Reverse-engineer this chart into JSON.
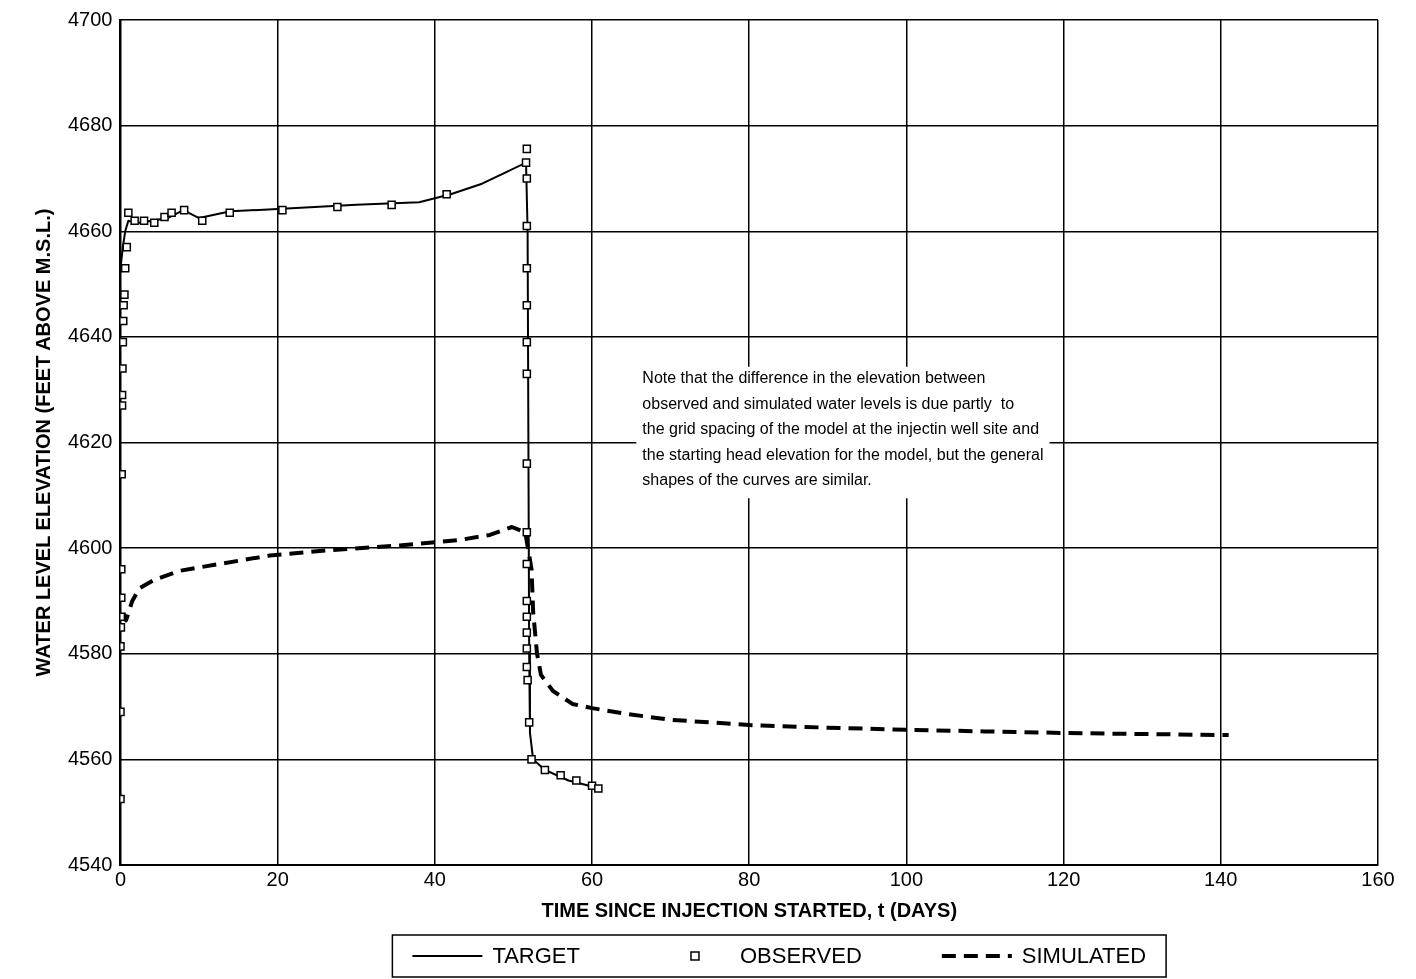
{
  "chart_data": {
    "type": "line",
    "xlabel": "TIME SINCE INJECTION STARTED, t (DAYS)",
    "ylabel": "WATER LEVEL ELEVATION (FEET ABOVE M.S.L.)",
    "xlim": [
      0,
      160
    ],
    "xticks": [
      0,
      20,
      40,
      60,
      80,
      100,
      120,
      140,
      160
    ],
    "ylim": [
      4540,
      4700
    ],
    "yticks": [
      4540,
      4560,
      4580,
      4600,
      4620,
      4640,
      4660,
      4680,
      4700
    ],
    "grid": true,
    "legend": "bottom",
    "annotations": [
      "Note that the difference in the elevation between\nobserved and simulated water levels is due partly  to\nthe grid spacing of the model at the injectin well site and\nthe starting head elevation for the model, but the general\nshapes of the curves are similar."
    ],
    "series": [
      {
        "name": "TARGET",
        "type": "line",
        "color": "#000000",
        "line_style": "solid",
        "marker": "none",
        "x": [
          0,
          0.3,
          0.6,
          1,
          2,
          4,
          6,
          8,
          10,
          14,
          20,
          30,
          38,
          42,
          46,
          51.6,
          51.8,
          51.9,
          52,
          52.1,
          52.5,
          54,
          57,
          61
        ],
        "values": [
          4653,
          4657,
          4660,
          4662,
          4661.5,
          4662,
          4662.5,
          4664,
          4662.5,
          4663.8,
          4664.2,
          4665,
          4665.5,
          4667,
          4669,
          4673,
          4660,
          4620,
          4580,
          4565,
          4560,
          4558,
          4556,
          4554.5
        ]
      },
      {
        "name": "OBSERVED",
        "type": "scatter",
        "color": "#000000",
        "marker": "square",
        "x": [
          0,
          0,
          0,
          0.05,
          0.05,
          0.1,
          0.1,
          0.15,
          0.2,
          0.2,
          0.25,
          0.3,
          0.35,
          0.4,
          0.5,
          0.6,
          0.8,
          1.0,
          1.8,
          3,
          4.3,
          5.6,
          6.5,
          8.1,
          10.4,
          13.9,
          20.6,
          27.6,
          34.5,
          41.5,
          51.6,
          51.7,
          51.7,
          51.7,
          51.7,
          51.7,
          51.7,
          51.7,
          51.7,
          51.7,
          51.7,
          51.7,
          51.7,
          51.7,
          51.7,
          51.7,
          51.8,
          52,
          52.3,
          54,
          56,
          58,
          60,
          60.8
        ],
        "values": [
          4552.5,
          4569,
          4581.4,
          4585,
          4587,
          4590.6,
          4596,
          4614,
          4627,
          4629,
          4634,
          4639,
          4643,
          4646,
          4648,
          4653,
          4657,
          4663.5,
          4662,
          4662,
          4661.6,
          4662.7,
          4663.5,
          4664,
          4662,
          4663.5,
          4664,
          4664.6,
          4665,
          4667,
          4673,
          4675.6,
          4670,
          4661,
          4653,
          4646,
          4639,
          4633,
          4616,
          4603,
          4597,
          4590,
          4587,
          4584,
          4581,
          4577.5,
          4575,
          4567,
          4560,
          4558,
          4557,
          4556,
          4555,
          4554.5
        ]
      },
      {
        "name": "SIMULATED",
        "type": "line",
        "color": "#000000",
        "line_style": "dashed",
        "marker": "none",
        "x": [
          0.4,
          0.7,
          1.5,
          2.4,
          4.3,
          7.5,
          12.6,
          19,
          26.6,
          35.5,
          43,
          47,
          49.8,
          51.5,
          52.3,
          52.5,
          53,
          53.5,
          55,
          57.5,
          60,
          64.4,
          70,
          80,
          90,
          100,
          110,
          120,
          130,
          141
        ],
        "values": [
          4587.7,
          4586.3,
          4590,
          4592.4,
          4594,
          4595.7,
          4597,
          4598.6,
          4599.6,
          4600.5,
          4601.5,
          4602.5,
          4604,
          4603,
          4596,
          4588,
          4580,
          4576,
          4573,
          4570.5,
          4569.7,
          4568.6,
          4567.5,
          4566.5,
          4566,
          4565.6,
          4565.3,
          4565,
          4564.8,
          4564.6
        ]
      }
    ]
  }
}
